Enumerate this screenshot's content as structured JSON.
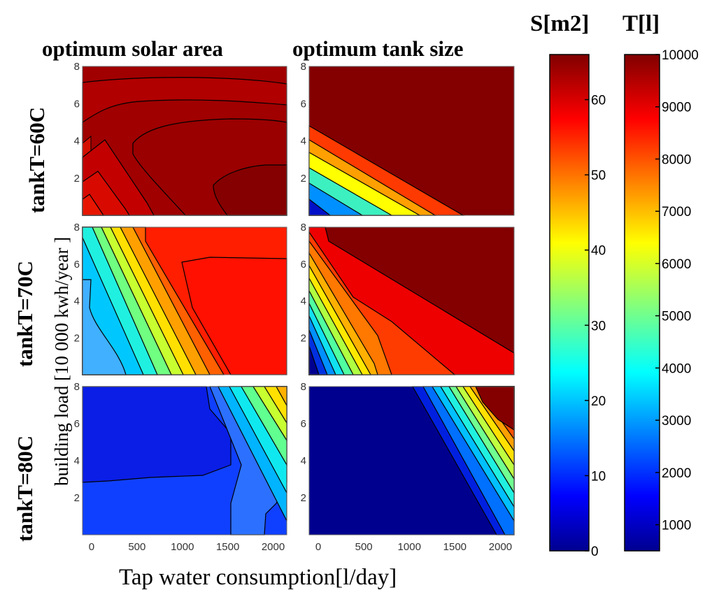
{
  "figure": {
    "column_titles": [
      "optimum solar area",
      "optimum tank size"
    ],
    "row_titles": [
      "tankT=60C",
      "tankT=70C",
      "tankT=80C"
    ],
    "xlabel": "Tap water consumption[l/day]",
    "ylabel": "building load [10 000 kwh/year ]",
    "colorbar_titles": [
      "S[m2]",
      "T[l]"
    ],
    "colormap": "jet"
  },
  "chart_data": {
    "type": "contour",
    "x_ticks": [
      0,
      500,
      1000,
      1500,
      2000
    ],
    "y_ticks": [
      2,
      4,
      6,
      8
    ],
    "xlim": [
      -100,
      2150
    ],
    "ylim": [
      0,
      8
    ],
    "panels": [
      {
        "row": "tankT=60C",
        "column": "optimum solar area",
        "variable": "S[m2]",
        "levels": [
          58,
          62,
          64,
          66
        ],
        "summary": "mostly 58-66 m2; lower values in the lower-left corner; maximum near x=1800-2100, y=1-3"
      },
      {
        "row": "tankT=60C",
        "column": "optimum tank size",
        "variable": "T[l]",
        "levels": [
          1000,
          3000,
          4500,
          6000,
          7500,
          10000
        ],
        "summary": "10000 l over most of the plot; decreasing toward the lower-left corner down to about 1000 l"
      },
      {
        "row": "tankT=70C",
        "column": "optimum solar area",
        "variable": "S[m2]",
        "levels": [
          20,
          25,
          30,
          35,
          40,
          45,
          50,
          55,
          58
        ],
        "summary": "about 20-25 m2 in the lower-left region; steep diagonal gradient; about 58-62 m2 on the right"
      },
      {
        "row": "tankT=70C",
        "column": "optimum tank size",
        "variable": "T[l]",
        "levels": [
          500,
          1500,
          2500,
          3500,
          4500,
          5500,
          6500,
          7500,
          8500,
          10000
        ],
        "summary": "diagonal gradient from about 500 l at lower-left to 10000 l at upper-right"
      },
      {
        "row": "tankT=80C",
        "column": "optimum solar area",
        "variable": "S[m2]",
        "levels": [
          8,
          12,
          16,
          20,
          25,
          30,
          35,
          40,
          45
        ],
        "summary": "about 8-16 m2 over most of the plot; rising to about 45 m2 at the right edge"
      },
      {
        "row": "tankT=80C",
        "column": "optimum tank size",
        "variable": "T[l]",
        "levels": [
          500,
          1000,
          2000,
          3000,
          4000,
          5000,
          6000,
          7000,
          8000,
          9000,
          10000
        ],
        "summary": "about 500 l over most of the plot; steep diagonal band rising to 10000 l at the upper-right corner"
      }
    ],
    "colorbars": [
      {
        "label": "S[m2]",
        "range": [
          0,
          66
        ],
        "ticks": [
          0,
          10,
          20,
          30,
          40,
          50,
          60
        ]
      },
      {
        "label": "T[l]",
        "range": [
          500,
          10000
        ],
        "ticks": [
          1000,
          2000,
          3000,
          4000,
          5000,
          6000,
          7000,
          8000,
          9000,
          10000
        ]
      }
    ]
  }
}
